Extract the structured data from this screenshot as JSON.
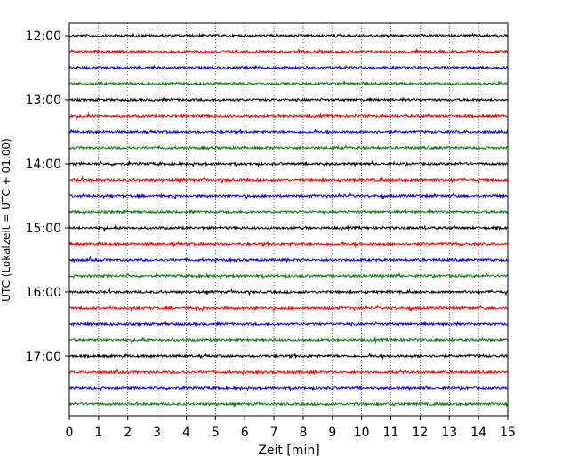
{
  "chart_data": {
    "type": "line",
    "title": "",
    "xlabel": "Zeit  [min]",
    "ylabel": "UTC (Lokalzeit = UTC + 01:00)",
    "xlim": [
      0,
      15
    ],
    "x_ticks": [
      "0",
      "1",
      "2",
      "3",
      "4",
      "5",
      "6",
      "7",
      "8",
      "9",
      "10",
      "11",
      "12",
      "13",
      "14",
      "15"
    ],
    "y_ticks": [
      "12:00",
      "13:00",
      "14:00",
      "15:00",
      "16:00",
      "17:00"
    ],
    "grid": "vertical dotted",
    "trace_start": "12:00",
    "trace_interval_min": 15,
    "trace_count": 24,
    "trace_colors": [
      "#000000",
      "#ff0000",
      "#0000ff",
      "#008000"
    ],
    "series": [
      {
        "start": "12:00",
        "color": "#000000"
      },
      {
        "start": "12:15",
        "color": "#ff0000"
      },
      {
        "start": "12:30",
        "color": "#0000ff"
      },
      {
        "start": "12:45",
        "color": "#008000"
      },
      {
        "start": "13:00",
        "color": "#000000"
      },
      {
        "start": "13:15",
        "color": "#ff0000"
      },
      {
        "start": "13:30",
        "color": "#0000ff"
      },
      {
        "start": "13:45",
        "color": "#008000"
      },
      {
        "start": "14:00",
        "color": "#000000"
      },
      {
        "start": "14:15",
        "color": "#ff0000"
      },
      {
        "start": "14:30",
        "color": "#0000ff"
      },
      {
        "start": "14:45",
        "color": "#008000"
      },
      {
        "start": "15:00",
        "color": "#000000"
      },
      {
        "start": "15:15",
        "color": "#ff0000"
      },
      {
        "start": "15:30",
        "color": "#0000ff"
      },
      {
        "start": "15:45",
        "color": "#008000"
      },
      {
        "start": "16:00",
        "color": "#000000"
      },
      {
        "start": "16:15",
        "color": "#ff0000"
      },
      {
        "start": "16:30",
        "color": "#0000ff"
      },
      {
        "start": "16:45",
        "color": "#008000"
      },
      {
        "start": "17:00",
        "color": "#000000"
      },
      {
        "start": "17:15",
        "color": "#ff0000"
      },
      {
        "start": "17:30",
        "color": "#0000ff"
      },
      {
        "start": "17:45",
        "color": "#008000"
      }
    ]
  }
}
